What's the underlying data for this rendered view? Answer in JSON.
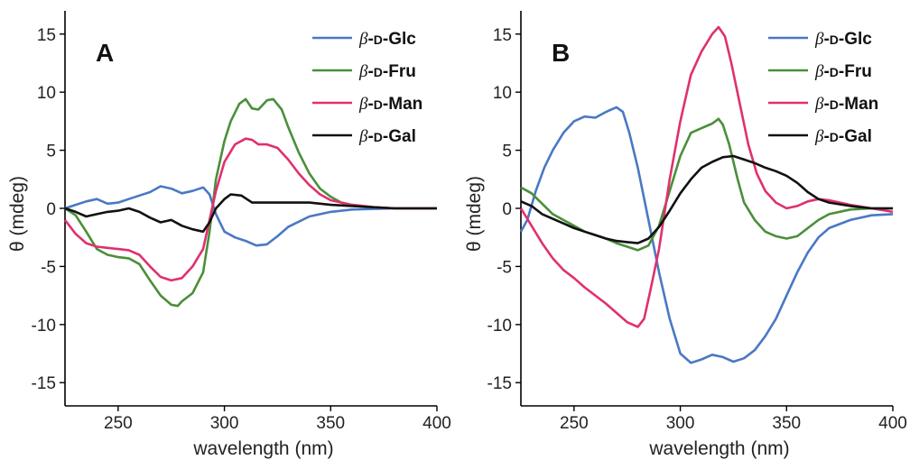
{
  "chart_data": [
    {
      "type": "line",
      "panel_label": "A",
      "xlabel": "wavelength (nm)",
      "ylabel": "θ (mdeg)",
      "xlim": [
        225,
        400
      ],
      "ylim": [
        -17,
        17
      ],
      "xticks": [
        250,
        300,
        350,
        400
      ],
      "yticks": [
        15,
        10,
        5,
        0,
        -5,
        -10,
        -15
      ],
      "legend_position": "top-right",
      "grid": false,
      "series": [
        {
          "name": "β-D-Glc",
          "color": "#4a78c4",
          "points": [
            [
              225,
              0
            ],
            [
              230,
              0.3
            ],
            [
              235,
              0.6
            ],
            [
              240,
              0.8
            ],
            [
              245,
              0.4
            ],
            [
              250,
              0.5
            ],
            [
              255,
              0.8
            ],
            [
              260,
              1.1
            ],
            [
              265,
              1.4
            ],
            [
              270,
              1.9
            ],
            [
              275,
              1.7
            ],
            [
              280,
              1.3
            ],
            [
              285,
              1.5
            ],
            [
              290,
              1.8
            ],
            [
              293,
              1.2
            ],
            [
              296,
              -0.5
            ],
            [
              300,
              -2.0
            ],
            [
              305,
              -2.5
            ],
            [
              310,
              -2.8
            ],
            [
              315,
              -3.2
            ],
            [
              320,
              -3.1
            ],
            [
              325,
              -2.4
            ],
            [
              330,
              -1.6
            ],
            [
              340,
              -0.7
            ],
            [
              350,
              -0.3
            ],
            [
              360,
              -0.1
            ],
            [
              380,
              0
            ],
            [
              400,
              0
            ]
          ]
        },
        {
          "name": "β-D-Fru",
          "color": "#4a8f3a",
          "points": [
            [
              225,
              0
            ],
            [
              230,
              -0.6
            ],
            [
              235,
              -2.0
            ],
            [
              240,
              -3.5
            ],
            [
              245,
              -4.0
            ],
            [
              250,
              -4.2
            ],
            [
              255,
              -4.3
            ],
            [
              260,
              -4.8
            ],
            [
              265,
              -6.2
            ],
            [
              270,
              -7.5
            ],
            [
              275,
              -8.3
            ],
            [
              278,
              -8.4
            ],
            [
              280,
              -8.0
            ],
            [
              285,
              -7.3
            ],
            [
              290,
              -5.5
            ],
            [
              293,
              -2.0
            ],
            [
              296,
              2.5
            ],
            [
              300,
              5.8
            ],
            [
              303,
              7.5
            ],
            [
              307,
              9.0
            ],
            [
              310,
              9.4
            ],
            [
              313,
              8.6
            ],
            [
              316,
              8.5
            ],
            [
              320,
              9.3
            ],
            [
              323,
              9.4
            ],
            [
              327,
              8.5
            ],
            [
              330,
              7.0
            ],
            [
              335,
              4.8
            ],
            [
              340,
              3.0
            ],
            [
              345,
              1.7
            ],
            [
              350,
              1.0
            ],
            [
              355,
              0.5
            ],
            [
              360,
              0.3
            ],
            [
              370,
              0.1
            ],
            [
              380,
              0
            ],
            [
              400,
              0
            ]
          ]
        },
        {
          "name": "β-D-Man",
          "color": "#e0306e",
          "points": [
            [
              225,
              -1.0
            ],
            [
              230,
              -2.2
            ],
            [
              235,
              -3.0
            ],
            [
              240,
              -3.3
            ],
            [
              245,
              -3.4
            ],
            [
              250,
              -3.5
            ],
            [
              255,
              -3.6
            ],
            [
              260,
              -4.0
            ],
            [
              265,
              -5.0
            ],
            [
              270,
              -5.9
            ],
            [
              275,
              -6.2
            ],
            [
              280,
              -6.0
            ],
            [
              285,
              -5.0
            ],
            [
              290,
              -3.5
            ],
            [
              293,
              -1.0
            ],
            [
              296,
              1.5
            ],
            [
              300,
              4.0
            ],
            [
              305,
              5.5
            ],
            [
              310,
              6.0
            ],
            [
              313,
              5.9
            ],
            [
              316,
              5.5
            ],
            [
              320,
              5.5
            ],
            [
              325,
              5.2
            ],
            [
              330,
              4.2
            ],
            [
              335,
              3.0
            ],
            [
              340,
              2.0
            ],
            [
              345,
              1.2
            ],
            [
              350,
              0.7
            ],
            [
              360,
              0.3
            ],
            [
              370,
              0.1
            ],
            [
              380,
              0
            ],
            [
              400,
              0
            ]
          ]
        },
        {
          "name": "β-D-Gal",
          "color": "#111111",
          "points": [
            [
              225,
              0
            ],
            [
              230,
              -0.3
            ],
            [
              235,
              -0.7
            ],
            [
              240,
              -0.5
            ],
            [
              245,
              -0.3
            ],
            [
              250,
              -0.2
            ],
            [
              255,
              0
            ],
            [
              260,
              -0.3
            ],
            [
              265,
              -0.8
            ],
            [
              270,
              -1.2
            ],
            [
              275,
              -1.0
            ],
            [
              280,
              -1.5
            ],
            [
              285,
              -1.8
            ],
            [
              290,
              -2.0
            ],
            [
              293,
              -1.2
            ],
            [
              296,
              0
            ],
            [
              300,
              0.8
            ],
            [
              303,
              1.2
            ],
            [
              308,
              1.1
            ],
            [
              313,
              0.5
            ],
            [
              320,
              0.5
            ],
            [
              330,
              0.5
            ],
            [
              340,
              0.5
            ],
            [
              350,
              0.3
            ],
            [
              360,
              0.2
            ],
            [
              380,
              0
            ],
            [
              400,
              0
            ]
          ]
        }
      ]
    },
    {
      "type": "line",
      "panel_label": "B",
      "xlabel": "wavelength (nm)",
      "ylabel": "θ (mdeg)",
      "xlim": [
        225,
        400
      ],
      "ylim": [
        -17,
        17
      ],
      "xticks": [
        250,
        300,
        350,
        400
      ],
      "yticks": [
        15,
        10,
        5,
        0,
        -5,
        -10,
        -15
      ],
      "legend_position": "top-right",
      "grid": false,
      "series": [
        {
          "name": "β-D-Glc",
          "color": "#4a78c4",
          "points": [
            [
              225,
              -2.0
            ],
            [
              228,
              -1.0
            ],
            [
              232,
              1.5
            ],
            [
              236,
              3.5
            ],
            [
              240,
              5.0
            ],
            [
              245,
              6.5
            ],
            [
              250,
              7.5
            ],
            [
              255,
              7.9
            ],
            [
              260,
              7.8
            ],
            [
              265,
              8.3
            ],
            [
              270,
              8.7
            ],
            [
              273,
              8.3
            ],
            [
              276,
              6.5
            ],
            [
              280,
              3.5
            ],
            [
              285,
              -1.0
            ],
            [
              290,
              -5.5
            ],
            [
              295,
              -9.5
            ],
            [
              300,
              -12.5
            ],
            [
              305,
              -13.3
            ],
            [
              310,
              -13.0
            ],
            [
              315,
              -12.6
            ],
            [
              320,
              -12.8
            ],
            [
              325,
              -13.2
            ],
            [
              330,
              -12.9
            ],
            [
              335,
              -12.2
            ],
            [
              340,
              -11.0
            ],
            [
              345,
              -9.5
            ],
            [
              350,
              -7.5
            ],
            [
              355,
              -5.5
            ],
            [
              360,
              -3.8
            ],
            [
              365,
              -2.5
            ],
            [
              370,
              -1.7
            ],
            [
              380,
              -1.0
            ],
            [
              390,
              -0.6
            ],
            [
              400,
              -0.5
            ]
          ]
        },
        {
          "name": "β-D-Fru",
          "color": "#4a8f3a",
          "points": [
            [
              225,
              1.8
            ],
            [
              230,
              1.3
            ],
            [
              235,
              0.4
            ],
            [
              240,
              -0.5
            ],
            [
              245,
              -1.0
            ],
            [
              250,
              -1.5
            ],
            [
              255,
              -2.0
            ],
            [
              260,
              -2.3
            ],
            [
              265,
              -2.6
            ],
            [
              270,
              -3.0
            ],
            [
              275,
              -3.3
            ],
            [
              280,
              -3.6
            ],
            [
              285,
              -3.2
            ],
            [
              290,
              -1.5
            ],
            [
              295,
              1.5
            ],
            [
              300,
              4.5
            ],
            [
              305,
              6.5
            ],
            [
              310,
              6.9
            ],
            [
              315,
              7.3
            ],
            [
              318,
              7.7
            ],
            [
              320,
              7.2
            ],
            [
              323,
              5.5
            ],
            [
              327,
              2.5
            ],
            [
              330,
              0.5
            ],
            [
              335,
              -1.0
            ],
            [
              340,
              -2.0
            ],
            [
              345,
              -2.4
            ],
            [
              350,
              -2.6
            ],
            [
              355,
              -2.4
            ],
            [
              360,
              -1.7
            ],
            [
              365,
              -1.0
            ],
            [
              370,
              -0.5
            ],
            [
              380,
              -0.1
            ],
            [
              390,
              0
            ],
            [
              400,
              0
            ]
          ]
        },
        {
          "name": "β-D-Man",
          "color": "#e0306e",
          "points": [
            [
              225,
              0
            ],
            [
              230,
              -1.5
            ],
            [
              235,
              -3.0
            ],
            [
              240,
              -4.3
            ],
            [
              245,
              -5.3
            ],
            [
              250,
              -6.0
            ],
            [
              255,
              -6.8
            ],
            [
              260,
              -7.5
            ],
            [
              265,
              -8.2
            ],
            [
              270,
              -9.0
            ],
            [
              275,
              -9.8
            ],
            [
              280,
              -10.2
            ],
            [
              283,
              -9.5
            ],
            [
              286,
              -7.0
            ],
            [
              290,
              -3.5
            ],
            [
              295,
              2.5
            ],
            [
              300,
              7.5
            ],
            [
              305,
              11.5
            ],
            [
              310,
              13.5
            ],
            [
              315,
              15.0
            ],
            [
              318,
              15.6
            ],
            [
              321,
              14.8
            ],
            [
              324,
              12.5
            ],
            [
              328,
              9.0
            ],
            [
              332,
              5.5
            ],
            [
              336,
              3.0
            ],
            [
              340,
              1.5
            ],
            [
              345,
              0.5
            ],
            [
              350,
              0
            ],
            [
              355,
              0.2
            ],
            [
              360,
              0.6
            ],
            [
              365,
              0.8
            ],
            [
              370,
              0.7
            ],
            [
              380,
              0.3
            ],
            [
              390,
              0
            ],
            [
              400,
              -0.3
            ]
          ]
        },
        {
          "name": "β-D-Gal",
          "color": "#111111",
          "points": [
            [
              225,
              0.6
            ],
            [
              230,
              0.2
            ],
            [
              235,
              -0.5
            ],
            [
              240,
              -0.9
            ],
            [
              245,
              -1.3
            ],
            [
              250,
              -1.7
            ],
            [
              255,
              -2.0
            ],
            [
              260,
              -2.3
            ],
            [
              265,
              -2.6
            ],
            [
              270,
              -2.8
            ],
            [
              275,
              -2.9
            ],
            [
              280,
              -3.0
            ],
            [
              285,
              -2.6
            ],
            [
              290,
              -1.6
            ],
            [
              295,
              -0.2
            ],
            [
              300,
              1.3
            ],
            [
              305,
              2.5
            ],
            [
              310,
              3.5
            ],
            [
              315,
              4.0
            ],
            [
              320,
              4.4
            ],
            [
              325,
              4.5
            ],
            [
              330,
              4.2
            ],
            [
              335,
              3.9
            ],
            [
              340,
              3.5
            ],
            [
              345,
              3.2
            ],
            [
              350,
              2.8
            ],
            [
              355,
              2.2
            ],
            [
              360,
              1.4
            ],
            [
              365,
              0.8
            ],
            [
              370,
              0.5
            ],
            [
              380,
              0.2
            ],
            [
              390,
              0
            ],
            [
              400,
              0
            ]
          ]
        }
      ]
    }
  ]
}
